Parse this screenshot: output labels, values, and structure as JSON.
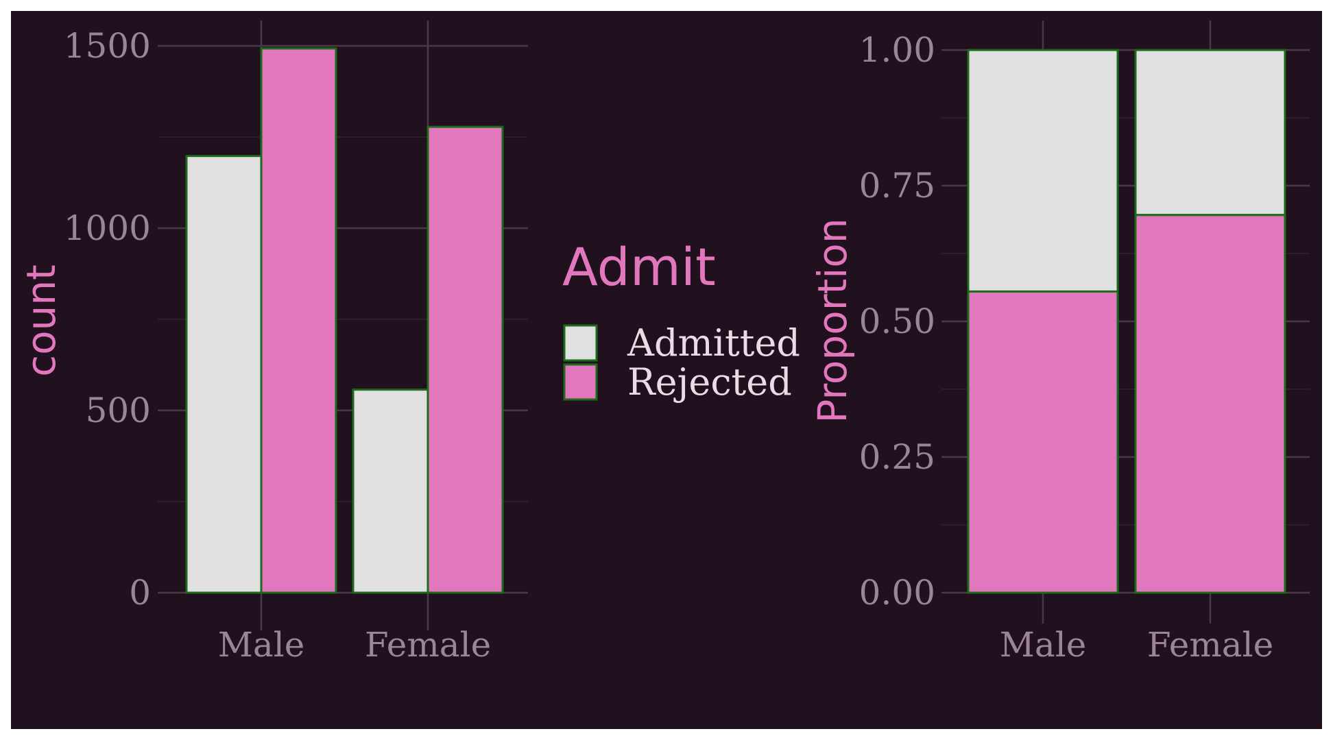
{
  "colors": {
    "background": "#21111e",
    "panel_background": "#21111e",
    "grid_major": "#4a3a47",
    "grid_minor": "#33232f",
    "tick_text": "#9c8599",
    "accent_pink": "#e377bd",
    "admitted_fill": "#e0e0e0",
    "rejected_fill": "#e377bd",
    "bar_outline": "#1b6b1b",
    "legend_text": "#e8dde6"
  },
  "legend": {
    "title": "Admit",
    "items": [
      {
        "label": "Admitted",
        "color": "#e0e0e0"
      },
      {
        "label": "Rejected",
        "color": "#e377bd"
      }
    ]
  },
  "chart_data": [
    {
      "type": "bar",
      "position": "dodge",
      "categories": [
        "Male",
        "Female"
      ],
      "series": [
        {
          "name": "Admitted",
          "values": [
            1198,
            557
          ]
        },
        {
          "name": "Rejected",
          "values": [
            1493,
            1278
          ]
        }
      ],
      "title": "",
      "xlabel": "",
      "ylabel": "count",
      "ylim": [
        0,
        1500
      ],
      "yticks": [
        0,
        500,
        1000,
        1500
      ],
      "ytick_labels": [
        "0",
        "500",
        "1000",
        "1500"
      ],
      "grid": true
    },
    {
      "type": "bar",
      "position": "fill",
      "categories": [
        "Male",
        "Female"
      ],
      "series": [
        {
          "name": "Admitted",
          "values": [
            0.445,
            0.304
          ]
        },
        {
          "name": "Rejected",
          "values": [
            0.555,
            0.696
          ]
        }
      ],
      "title": "",
      "xlabel": "",
      "ylabel": "Proportion",
      "ylim": [
        0,
        1
      ],
      "yticks": [
        0,
        0.25,
        0.5,
        0.75,
        1
      ],
      "ytick_labels": [
        "0.00",
        "0.25",
        "0.50",
        "0.75",
        "1.00"
      ],
      "grid": true
    }
  ]
}
